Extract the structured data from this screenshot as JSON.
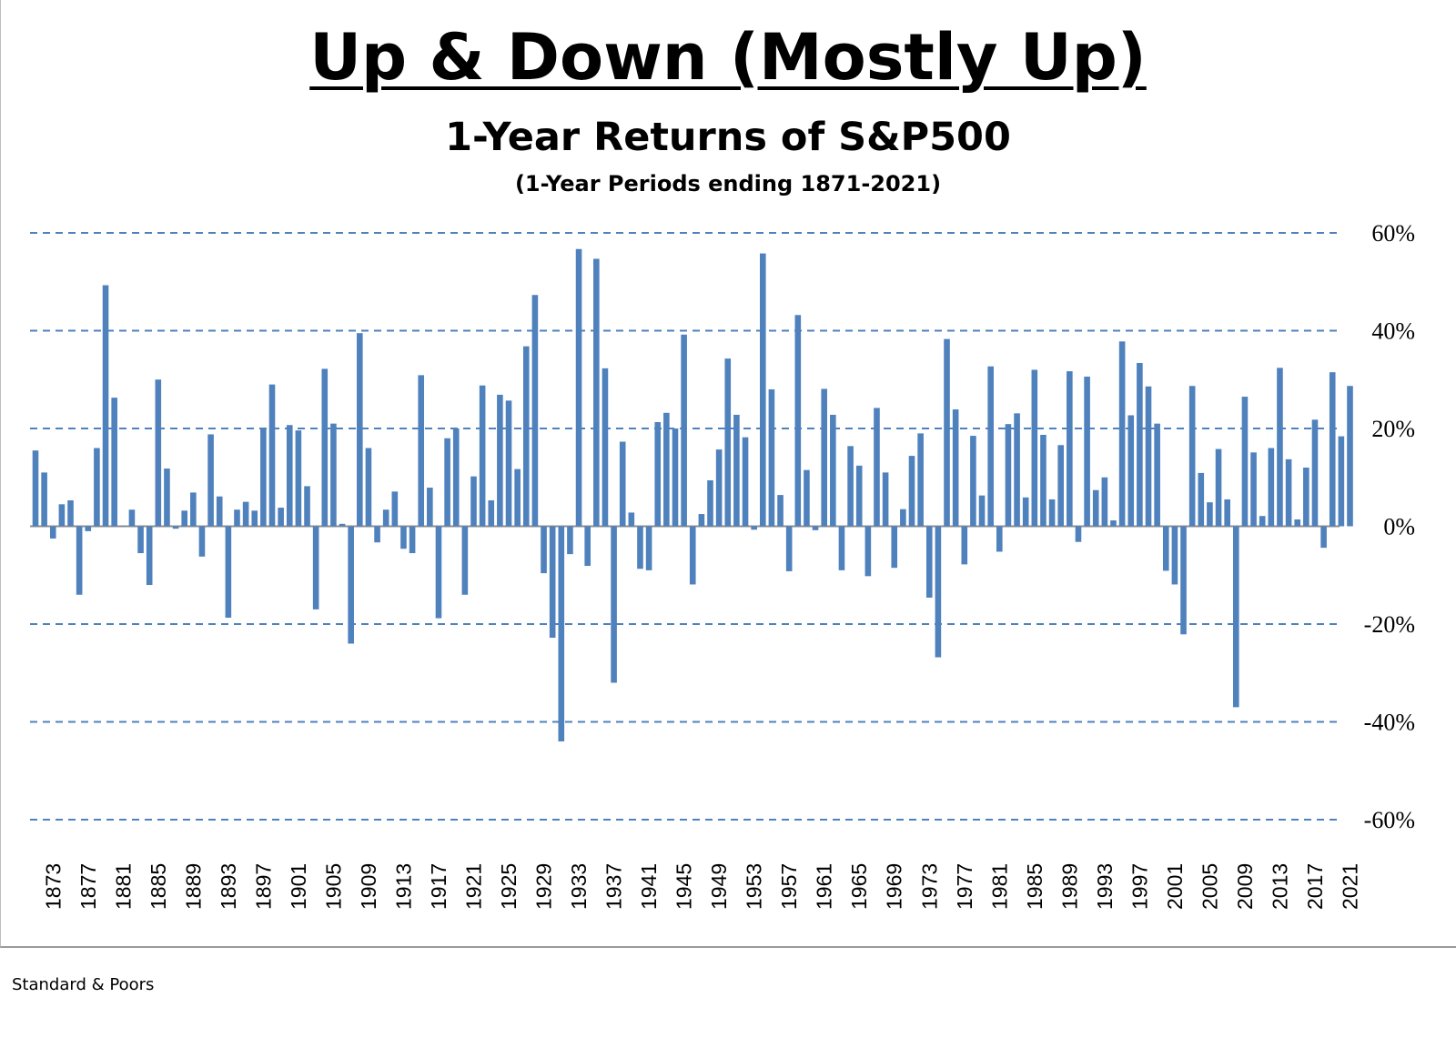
{
  "chart_data": {
    "type": "bar",
    "title": "Up & Down (Mostly Up)",
    "subtitle": "1-Year Returns of S&P500",
    "note": "(1-Year Periods ending 1871-2021)",
    "source": "Standard & Poors",
    "ylim": [
      -60,
      60
    ],
    "y_ticks": [
      60,
      40,
      20,
      0,
      -20,
      -40,
      -60
    ],
    "y_tick_labels": [
      "60%",
      "40%",
      "20%",
      "0%",
      "-20%",
      "-40%",
      "-60%"
    ],
    "x_tick_labels": [
      "1873",
      "1877",
      "1881",
      "1885",
      "1889",
      "1893",
      "1897",
      "1901",
      "1905",
      "1909",
      "1913",
      "1917",
      "1921",
      "1925",
      "1929",
      "1933",
      "1937",
      "1941",
      "1945",
      "1949",
      "1953",
      "1957",
      "1961",
      "1965",
      "1969",
      "1973",
      "1977",
      "1981",
      "1985",
      "1989",
      "1993",
      "1997",
      "2001",
      "2005",
      "2009",
      "2013",
      "2017",
      "2021"
    ],
    "grid": "horizontal dashed",
    "legend": "none",
    "bar_color": "#4f81bd",
    "grid_color": "#4f81bd",
    "x_start": 1871,
    "x_end": 2021,
    "values": [
      15.5,
      11,
      -2.5,
      4.5,
      5.3,
      -14,
      -1,
      16,
      49.3,
      26.3,
      0,
      3.4,
      -5.5,
      -12,
      30,
      11.8,
      -0.5,
      3.2,
      6.9,
      -6.2,
      18.8,
      6.1,
      -18.7,
      3.4,
      5,
      3.2,
      20,
      29,
      3.8,
      20.7,
      19.6,
      8.2,
      -17,
      32.2,
      21,
      0.5,
      -24,
      39.5,
      16,
      -3.3,
      3.4,
      7.1,
      -4.6,
      -5.5,
      30.9,
      7.9,
      -18.8,
      18,
      20,
      -14,
      10.2,
      28.8,
      5.3,
      26.9,
      25.7,
      11.7,
      36.8,
      47.3,
      -9.6,
      -22.8,
      -44,
      -5.7,
      56.7,
      -8.1,
      54.7,
      32.3,
      -32,
      17.3,
      2.8,
      -8.7,
      -9,
      21.3,
      23.2,
      20,
      39.2,
      -11.9,
      2.5,
      9.4,
      15.7,
      34.3,
      22.8,
      18.2,
      -0.7,
      55.8,
      28,
      6.4,
      -9.2,
      43.2,
      11.5,
      -0.8,
      28.1,
      22.8,
      -9,
      16.4,
      12.4,
      -10.2,
      24.2,
      11,
      -8.5,
      3.5,
      14.4,
      19,
      -14.6,
      -26.8,
      38.3,
      23.9,
      -7.8,
      18.5,
      6.3,
      32.7,
      -5.2,
      20.9,
      23.1,
      5.9,
      32,
      18.7,
      5.5,
      16.6,
      31.7,
      -3.2,
      30.6,
      7.4,
      10,
      1.2,
      37.8,
      22.7,
      33.4,
      28.6,
      21,
      -9.1,
      -11.9,
      -22.1,
      28.7,
      10.9,
      4.9,
      15.8,
      5.5,
      -37,
      26.5,
      15.1,
      2.1,
      16,
      32.4,
      13.7,
      1.4,
      12,
      21.8,
      -4.4,
      31.5,
      18.4,
      28.7
    ]
  }
}
